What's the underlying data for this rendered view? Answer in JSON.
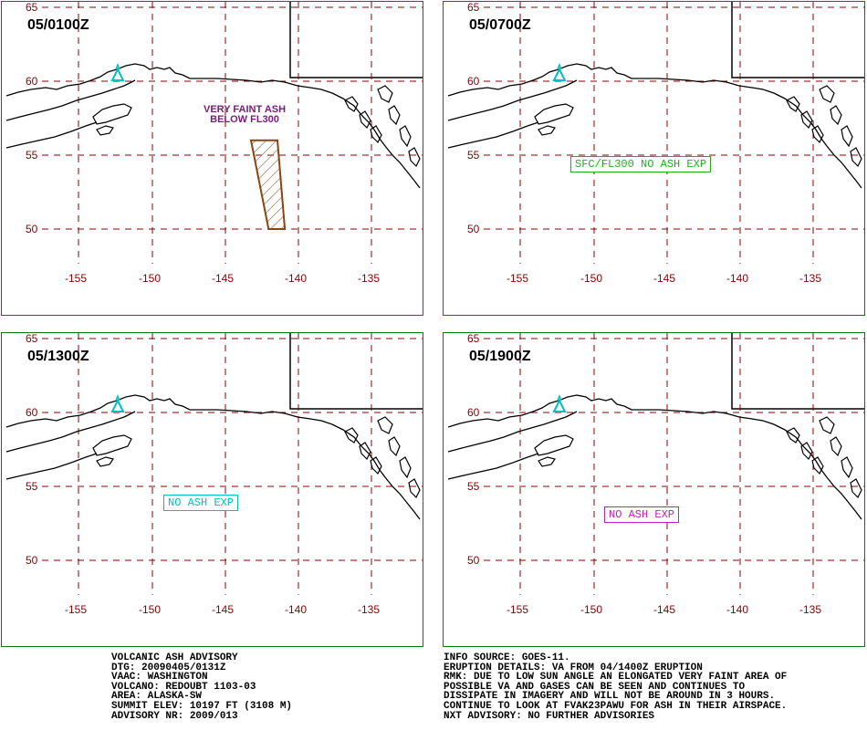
{
  "panels": [
    {
      "time": "05/0100Z",
      "note": [
        "VERY FAINT ASH",
        "BELOW FL300"
      ],
      "stamp": null,
      "polygon": [
        [
          -143.3,
          56.0
        ],
        [
          -141.5,
          56.0
        ],
        [
          -141.0,
          50.0
        ],
        [
          -142.1,
          50.0
        ]
      ]
    },
    {
      "time": "05/0700Z",
      "note": null,
      "stamp": {
        "text": "SFC/FL300 NO ASH EXP",
        "color": "#20b020"
      }
    },
    {
      "time": "05/1300Z",
      "note": null,
      "stamp": {
        "text": "NO ASH EXP",
        "color": "#00c0c0"
      }
    },
    {
      "time": "05/1900Z",
      "note": null,
      "stamp": {
        "text": "NO ASH EXP",
        "color": "#c020c0"
      }
    }
  ],
  "map": {
    "lat_labels": [
      "65",
      "60",
      "55",
      "50"
    ],
    "lon_labels": [
      "-155",
      "-150",
      "-145",
      "-140",
      "-135"
    ],
    "colors": {
      "grid": "#8b0000",
      "coast": "#000000",
      "border": "#0a7a0a",
      "ash": "#8b4513",
      "volcano": "#00c0c0"
    },
    "volcano_icon": "volcano-icon"
  },
  "advisory": {
    "left": [
      "VOLCANIC ASH ADVISORY",
      "DTG: 20090405/0131Z",
      "VAAC: WASHINGTON",
      "VOLCANO: REDOUBT 1103-03",
      "AREA: ALASKA-SW",
      "SUMMIT ELEV: 10197 FT (3108 M)",
      "ADVISORY NR: 2009/013"
    ],
    "right": [
      "INFO SOURCE: GOES-11.",
      "ERUPTION DETAILS: VA FROM 04/1400Z ERUPTION",
      "RMK: DUE TO LOW SUN ANGLE AN ELONGATED VERY FAINT AREA OF",
      "POSSIBLE VA AND GASES CAN BE SEEN AND CONTINUES TO",
      "DISSIPATE IN IMAGERY AND WILL NOT BE AROUND IN 3 HOURS.",
      "CONTINUE TO LOOK AT FVAK23PAWU FOR ASH IN THEIR AIRSPACE.",
      "NXT ADVISORY: NO FURTHER ADVISORIES"
    ]
  }
}
